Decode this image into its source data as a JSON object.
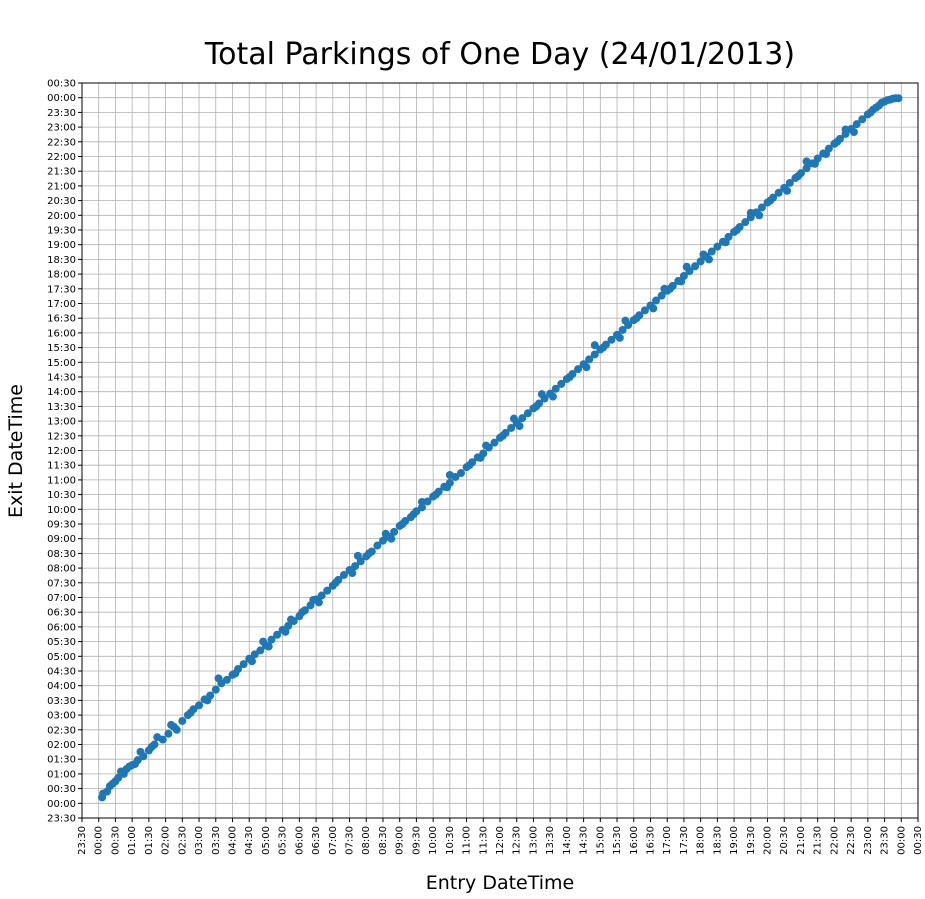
{
  "chart_data": {
    "type": "scatter",
    "title": "Total Parkings of One Day (24/01/2013)",
    "xlabel": "Entry DateTime",
    "ylabel": "Exit DateTime",
    "x_ticks": [
      "23:30",
      "00:00",
      "00:30",
      "01:00",
      "01:30",
      "02:00",
      "02:30",
      "03:00",
      "03:30",
      "04:00",
      "04:30",
      "05:00",
      "05:30",
      "06:00",
      "06:30",
      "07:00",
      "07:30",
      "08:00",
      "08:30",
      "09:00",
      "09:30",
      "10:00",
      "10:30",
      "11:00",
      "11:30",
      "12:00",
      "12:30",
      "13:00",
      "13:30",
      "14:00",
      "14:30",
      "15:00",
      "15:30",
      "16:00",
      "16:30",
      "17:00",
      "17:30",
      "18:00",
      "18:30",
      "19:00",
      "19:30",
      "20:00",
      "20:30",
      "21:00",
      "21:30",
      "22:00",
      "22:30",
      "23:00",
      "23:30",
      "00:00",
      "00:30"
    ],
    "y_ticks": [
      "23:30",
      "00:00",
      "00:30",
      "01:00",
      "01:30",
      "02:00",
      "02:30",
      "03:00",
      "03:30",
      "04:00",
      "04:30",
      "05:00",
      "05:30",
      "06:00",
      "06:30",
      "07:00",
      "07:30",
      "08:00",
      "08:30",
      "09:00",
      "09:30",
      "10:00",
      "10:30",
      "11:00",
      "11:30",
      "12:00",
      "12:30",
      "13:00",
      "13:30",
      "14:00",
      "14:30",
      "15:00",
      "15:30",
      "16:00",
      "16:30",
      "17:00",
      "17:30",
      "18:00",
      "18:30",
      "19:00",
      "19:30",
      "20:00",
      "20:30",
      "21:00",
      "21:30",
      "22:00",
      "22:30",
      "23:00",
      "23:30",
      "00:00",
      "00:30"
    ],
    "xlim": [
      "23:30",
      "00:30"
    ],
    "ylim": [
      "23:30",
      "00:30"
    ],
    "grid": true,
    "marker_color": "#1f77b4",
    "points": [
      [
        "00:06",
        "00:12"
      ],
      [
        "00:08",
        "00:20"
      ],
      [
        "00:15",
        "00:24"
      ],
      [
        "00:20",
        "00:35"
      ],
      [
        "00:30",
        "00:45"
      ],
      [
        "00:35",
        "00:52"
      ],
      [
        "00:45",
        "01:00"
      ],
      [
        "00:50",
        "01:10"
      ],
      [
        "01:00",
        "01:18"
      ],
      [
        "01:10",
        "01:28"
      ],
      [
        "01:20",
        "01:36"
      ],
      [
        "01:30",
        "01:48"
      ],
      [
        "01:40",
        "02:00"
      ],
      [
        "01:45",
        "02:15"
      ],
      [
        "01:55",
        "02:10"
      ],
      [
        "02:05",
        "02:22"
      ],
      [
        "02:15",
        "02:36"
      ],
      [
        "02:30",
        "02:48"
      ],
      [
        "02:40",
        "03:00"
      ],
      [
        "02:50",
        "03:12"
      ],
      [
        "03:00",
        "03:20"
      ],
      [
        "03:10",
        "03:32"
      ],
      [
        "03:20",
        "03:40"
      ],
      [
        "03:30",
        "03:52"
      ],
      [
        "03:40",
        "04:05"
      ],
      [
        "03:50",
        "04:12"
      ],
      [
        "04:00",
        "04:22"
      ],
      [
        "04:10",
        "04:34"
      ],
      [
        "04:20",
        "04:44"
      ],
      [
        "04:30",
        "04:55"
      ],
      [
        "04:40",
        "05:04"
      ],
      [
        "04:50",
        "05:12"
      ],
      [
        "05:00",
        "05:22"
      ],
      [
        "05:10",
        "05:34"
      ],
      [
        "05:20",
        "05:44"
      ],
      [
        "05:30",
        "05:54"
      ],
      [
        "05:40",
        "06:02"
      ],
      [
        "05:50",
        "06:12"
      ],
      [
        "06:00",
        "06:22"
      ],
      [
        "06:10",
        "06:34"
      ],
      [
        "06:20",
        "06:44"
      ],
      [
        "06:30",
        "06:56"
      ],
      [
        "06:40",
        "07:04"
      ],
      [
        "06:50",
        "07:14"
      ],
      [
        "07:00",
        "07:24"
      ],
      [
        "07:10",
        "07:36"
      ],
      [
        "07:20",
        "07:46"
      ],
      [
        "07:30",
        "07:56"
      ],
      [
        "07:40",
        "08:04"
      ],
      [
        "07:50",
        "08:14"
      ],
      [
        "08:00",
        "08:24"
      ],
      [
        "08:10",
        "08:34"
      ],
      [
        "08:20",
        "08:46"
      ],
      [
        "08:30",
        "08:56"
      ],
      [
        "08:40",
        "09:04"
      ],
      [
        "08:50",
        "09:14"
      ],
      [
        "09:00",
        "09:26"
      ],
      [
        "09:10",
        "09:36"
      ],
      [
        "09:20",
        "09:44"
      ],
      [
        "09:30",
        "09:56"
      ],
      [
        "09:40",
        "10:04"
      ],
      [
        "09:50",
        "10:16"
      ],
      [
        "10:00",
        "10:26"
      ],
      [
        "10:10",
        "10:36"
      ],
      [
        "10:20",
        "10:46"
      ],
      [
        "10:30",
        "10:54"
      ],
      [
        "10:40",
        "11:06"
      ],
      [
        "10:50",
        "11:14"
      ],
      [
        "11:00",
        "11:26"
      ],
      [
        "11:10",
        "11:36"
      ],
      [
        "11:20",
        "11:46"
      ],
      [
        "11:30",
        "11:54"
      ],
      [
        "11:40",
        "12:06"
      ],
      [
        "11:50",
        "12:16"
      ],
      [
        "12:00",
        "12:26"
      ],
      [
        "12:10",
        "12:36"
      ],
      [
        "12:20",
        "12:46"
      ],
      [
        "12:30",
        "12:56"
      ],
      [
        "12:40",
        "13:06"
      ],
      [
        "12:50",
        "13:16"
      ],
      [
        "13:00",
        "13:26"
      ],
      [
        "13:10",
        "13:36"
      ],
      [
        "13:20",
        "13:46"
      ],
      [
        "13:30",
        "13:56"
      ],
      [
        "13:40",
        "14:06"
      ],
      [
        "13:50",
        "14:16"
      ],
      [
        "14:00",
        "14:26"
      ],
      [
        "14:10",
        "14:36"
      ],
      [
        "14:20",
        "14:46"
      ],
      [
        "14:30",
        "14:56"
      ],
      [
        "14:40",
        "15:06"
      ],
      [
        "14:50",
        "15:16"
      ],
      [
        "15:00",
        "15:26"
      ],
      [
        "15:10",
        "15:36"
      ],
      [
        "15:20",
        "15:46"
      ],
      [
        "15:30",
        "15:56"
      ],
      [
        "15:40",
        "16:06"
      ],
      [
        "15:50",
        "16:16"
      ],
      [
        "16:00",
        "16:26"
      ],
      [
        "16:10",
        "16:36"
      ],
      [
        "16:20",
        "16:46"
      ],
      [
        "16:30",
        "16:56"
      ],
      [
        "16:40",
        "17:06"
      ],
      [
        "16:50",
        "17:16"
      ],
      [
        "17:00",
        "17:26"
      ],
      [
        "17:10",
        "17:36"
      ],
      [
        "17:20",
        "17:46"
      ],
      [
        "17:30",
        "17:56"
      ],
      [
        "17:40",
        "18:06"
      ],
      [
        "17:50",
        "18:16"
      ],
      [
        "18:00",
        "18:26"
      ],
      [
        "18:10",
        "18:36"
      ],
      [
        "18:20",
        "18:46"
      ],
      [
        "18:30",
        "18:56"
      ],
      [
        "18:40",
        "19:06"
      ],
      [
        "18:50",
        "19:16"
      ],
      [
        "19:00",
        "19:26"
      ],
      [
        "19:10",
        "19:36"
      ],
      [
        "19:20",
        "19:46"
      ],
      [
        "19:30",
        "19:56"
      ],
      [
        "19:40",
        "20:06"
      ],
      [
        "19:50",
        "20:16"
      ],
      [
        "20:00",
        "20:26"
      ],
      [
        "20:10",
        "20:36"
      ],
      [
        "20:20",
        "20:46"
      ],
      [
        "20:30",
        "20:56"
      ],
      [
        "20:40",
        "21:06"
      ],
      [
        "20:50",
        "21:16"
      ],
      [
        "21:00",
        "21:26"
      ],
      [
        "21:10",
        "21:36"
      ],
      [
        "21:20",
        "21:46"
      ],
      [
        "21:30",
        "21:56"
      ],
      [
        "21:40",
        "22:06"
      ],
      [
        "21:50",
        "22:16"
      ],
      [
        "22:00",
        "22:26"
      ],
      [
        "22:10",
        "22:36"
      ],
      [
        "22:20",
        "22:46"
      ],
      [
        "22:30",
        "22:56"
      ],
      [
        "22:40",
        "23:06"
      ],
      [
        "22:50",
        "23:16"
      ],
      [
        "23:00",
        "23:26"
      ],
      [
        "23:10",
        "23:36"
      ],
      [
        "23:20",
        "23:44"
      ],
      [
        "23:30",
        "23:52"
      ],
      [
        "23:40",
        "23:56"
      ],
      [
        "23:50",
        "23:59"
      ],
      [
        "23:55",
        "23:59"
      ],
      [
        "01:15",
        "01:45"
      ],
      [
        "02:10",
        "02:40"
      ],
      [
        "04:55",
        "05:30"
      ],
      [
        "10:30",
        "11:10"
      ],
      [
        "14:50",
        "15:35"
      ],
      [
        "17:35",
        "18:15"
      ],
      [
        "19:30",
        "20:05"
      ],
      [
        "21:10",
        "21:50"
      ],
      [
        "07:45",
        "08:25"
      ],
      [
        "09:40",
        "10:15"
      ],
      [
        "12:25",
        "13:05"
      ],
      [
        "15:45",
        "16:25"
      ],
      [
        "16:55",
        "17:30"
      ],
      [
        "03:35",
        "04:15"
      ],
      [
        "05:45",
        "06:15"
      ],
      [
        "06:25",
        "06:55"
      ],
      [
        "08:35",
        "09:10"
      ],
      [
        "11:35",
        "12:10"
      ],
      [
        "13:15",
        "13:55"
      ],
      [
        "18:05",
        "18:40"
      ],
      [
        "20:55",
        "21:20"
      ],
      [
        "22:20",
        "22:55"
      ],
      [
        "23:25",
        "23:50"
      ],
      [
        "00:25",
        "00:40"
      ],
      [
        "00:40",
        "01:05"
      ],
      [
        "01:05",
        "01:20"
      ],
      [
        "01:35",
        "01:55"
      ],
      [
        "02:20",
        "02:30"
      ],
      [
        "02:45",
        "03:05"
      ],
      [
        "03:15",
        "03:30"
      ],
      [
        "04:05",
        "04:25"
      ],
      [
        "04:35",
        "04:50"
      ],
      [
        "05:05",
        "05:20"
      ],
      [
        "05:35",
        "05:50"
      ],
      [
        "06:05",
        "06:30"
      ],
      [
        "06:35",
        "06:50"
      ],
      [
        "07:05",
        "07:30"
      ],
      [
        "07:35",
        "07:50"
      ],
      [
        "08:05",
        "08:30"
      ],
      [
        "08:45",
        "09:00"
      ],
      [
        "09:05",
        "09:30"
      ],
      [
        "09:25",
        "09:50"
      ],
      [
        "10:05",
        "10:30"
      ],
      [
        "10:25",
        "10:45"
      ],
      [
        "11:05",
        "11:30"
      ],
      [
        "11:25",
        "11:45"
      ],
      [
        "12:05",
        "12:30"
      ],
      [
        "12:35",
        "12:50"
      ],
      [
        "13:05",
        "13:30"
      ],
      [
        "13:35",
        "13:50"
      ],
      [
        "14:05",
        "14:30"
      ],
      [
        "14:35",
        "14:50"
      ],
      [
        "15:05",
        "15:30"
      ],
      [
        "15:35",
        "15:50"
      ],
      [
        "16:05",
        "16:30"
      ],
      [
        "16:35",
        "16:50"
      ],
      [
        "17:05",
        "17:30"
      ],
      [
        "17:25",
        "17:45"
      ],
      [
        "18:15",
        "18:30"
      ],
      [
        "18:45",
        "19:05"
      ],
      [
        "19:05",
        "19:30"
      ],
      [
        "19:45",
        "20:00"
      ],
      [
        "20:05",
        "20:30"
      ],
      [
        "20:35",
        "20:50"
      ],
      [
        "21:25",
        "21:45"
      ],
      [
        "21:45",
        "22:05"
      ],
      [
        "22:05",
        "22:30"
      ],
      [
        "22:35",
        "22:50"
      ],
      [
        "23:05",
        "23:30"
      ],
      [
        "23:15",
        "23:40"
      ],
      [
        "23:35",
        "23:55"
      ],
      [
        "23:45",
        "23:58"
      ],
      [
        "00:55",
        "01:15"
      ]
    ]
  }
}
